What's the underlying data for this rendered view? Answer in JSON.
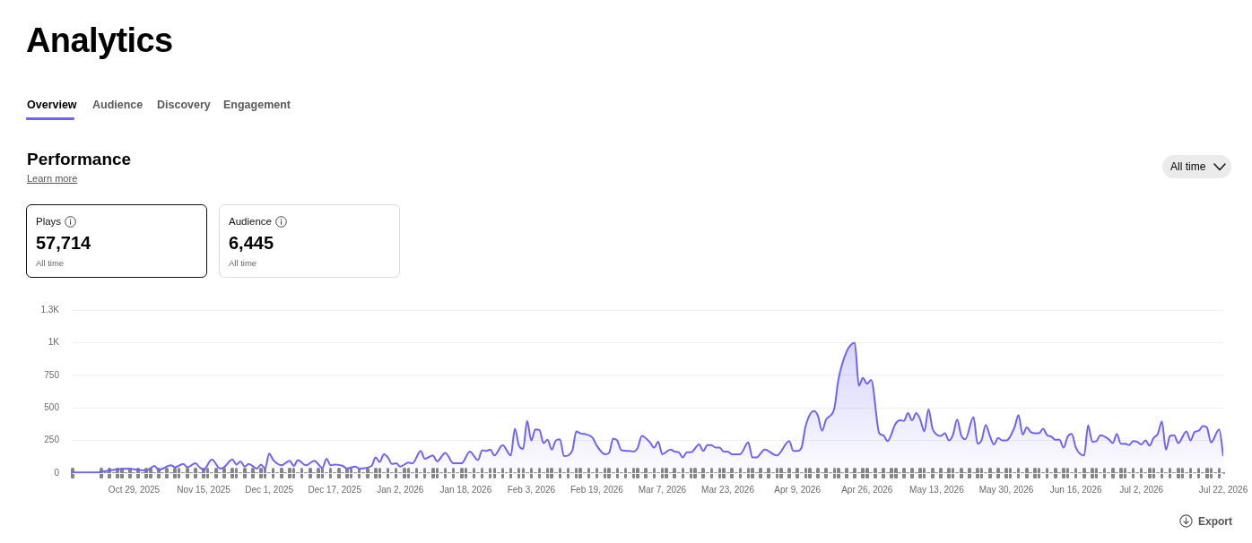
{
  "chart_data": {
    "type": "area",
    "title": "Performance",
    "subtitle": "Learn more",
    "annotations": [
      "Analytics",
      "Overview",
      "Audience",
      "Discovery",
      "Engagement",
      "All time",
      "Plays",
      "57,714",
      "All time",
      "Audience",
      "6,445",
      "All time",
      "Export"
    ],
    "x": [
      "2025-10-14",
      "2025-10-20",
      "2025-10-22",
      "2025-10-27",
      "2025-11-01",
      "2025-11-03",
      "2025-11-04",
      "2025-11-07",
      "2025-11-08",
      "2025-11-10",
      "2025-11-11",
      "2025-11-13",
      "2025-11-14",
      "2025-11-15",
      "2025-11-17",
      "2025-11-19",
      "2025-11-20",
      "2025-11-22",
      "2025-11-23",
      "2025-11-24",
      "2025-11-25",
      "2025-11-26",
      "2025-11-28",
      "2025-11-29",
      "2025-11-30",
      "2025-12-01",
      "2025-12-02",
      "2025-12-04",
      "2025-12-06",
      "2025-12-07",
      "2025-12-08",
      "2025-12-10",
      "2025-12-12",
      "2025-12-14",
      "2025-12-15",
      "2025-12-16",
      "2025-12-17",
      "2025-12-19",
      "2025-12-20",
      "2025-12-22",
      "2025-12-23",
      "2025-12-26",
      "2025-12-27",
      "2025-12-28",
      "2025-12-29",
      "2025-12-30",
      "2025-12-31",
      "2026-01-01",
      "2026-01-02",
      "2026-01-04",
      "2026-01-05",
      "2026-01-07",
      "2026-01-08",
      "2026-01-10",
      "2026-01-11",
      "2026-01-13",
      "2026-01-15",
      "2026-01-17",
      "2026-01-19",
      "2026-01-21",
      "2026-01-22",
      "2026-01-23",
      "2026-01-24",
      "2026-01-25",
      "2026-01-27",
      "2026-01-29",
      "2026-01-30",
      "2026-01-31",
      "2026-02-01",
      "2026-02-02",
      "2026-02-03",
      "2026-02-04",
      "2026-02-05",
      "2026-02-06",
      "2026-02-07",
      "2026-02-08",
      "2026-02-09",
      "2026-02-10",
      "2026-02-11",
      "2026-02-13",
      "2026-02-14",
      "2026-02-15",
      "2026-02-16",
      "2026-02-18",
      "2026-02-19",
      "2026-02-21",
      "2026-02-22",
      "2026-02-23",
      "2026-02-24",
      "2026-02-25",
      "2026-02-27",
      "2026-02-28",
      "2026-03-01",
      "2026-03-02",
      "2026-03-04",
      "2026-03-05",
      "2026-03-06",
      "2026-03-07",
      "2026-03-09",
      "2026-03-10",
      "2026-03-11",
      "2026-03-12",
      "2026-03-13",
      "2026-03-14",
      "2026-03-16",
      "2026-03-17",
      "2026-03-18",
      "2026-03-19",
      "2026-03-20",
      "2026-03-21",
      "2026-03-22",
      "2026-03-23",
      "2026-03-24",
      "2026-03-26",
      "2026-03-28",
      "2026-03-29",
      "2026-03-30",
      "2026-04-01",
      "2026-04-04",
      "2026-04-07",
      "2026-04-08",
      "2026-04-09",
      "2026-04-10",
      "2026-04-11",
      "2026-04-13",
      "2026-04-14",
      "2026-04-15",
      "2026-04-16",
      "2026-04-18",
      "2026-04-19",
      "2026-04-21",
      "2026-04-23",
      "2026-04-24",
      "2026-04-25",
      "2026-04-26",
      "2026-04-27",
      "2026-04-29",
      "2026-04-30",
      "2026-05-01",
      "2026-05-03",
      "2026-05-04",
      "2026-05-05",
      "2026-05-06",
      "2026-05-07",
      "2026-05-08",
      "2026-05-09",
      "2026-05-10",
      "2026-05-11",
      "2026-05-12",
      "2026-05-13",
      "2026-05-14",
      "2026-05-15",
      "2026-05-16",
      "2026-05-17",
      "2026-05-18",
      "2026-05-19",
      "2026-05-20",
      "2026-05-22",
      "2026-05-23",
      "2026-05-24",
      "2026-05-25",
      "2026-05-26",
      "2026-05-27",
      "2026-05-28",
      "2026-05-29",
      "2026-05-30",
      "2026-06-01",
      "2026-06-02",
      "2026-06-03",
      "2026-06-04",
      "2026-06-05",
      "2026-06-06",
      "2026-06-07",
      "2026-06-08",
      "2026-06-09",
      "2026-06-10",
      "2026-06-11",
      "2026-06-12",
      "2026-06-13",
      "2026-06-14",
      "2026-06-15",
      "2026-06-16",
      "2026-06-18",
      "2026-06-19",
      "2026-06-20",
      "2026-06-21",
      "2026-06-22",
      "2026-06-24",
      "2026-06-25",
      "2026-06-26",
      "2026-06-27",
      "2026-06-28",
      "2026-06-29",
      "2026-06-30",
      "2026-07-01",
      "2026-07-02",
      "2026-07-03",
      "2026-07-04",
      "2026-07-05",
      "2026-07-06",
      "2026-07-07",
      "2026-07-08",
      "2026-07-09",
      "2026-07-10",
      "2026-07-11",
      "2026-07-13",
      "2026-07-14",
      "2026-07-15",
      "2026-07-16",
      "2026-07-17",
      "2026-07-18",
      "2026-07-19",
      "2026-07-21",
      "2026-07-22"
    ],
    "values": [
      5,
      5,
      15,
      35,
      20,
      55,
      25,
      60,
      45,
      70,
      45,
      75,
      45,
      25,
      105,
      35,
      45,
      105,
      65,
      90,
      50,
      70,
      35,
      65,
      35,
      150,
      100,
      60,
      95,
      55,
      100,
      60,
      95,
      40,
      110,
      60,
      65,
      55,
      35,
      50,
      35,
      55,
      120,
      85,
      145,
      120,
      70,
      75,
      50,
      80,
      75,
      170,
      110,
      135,
      90,
      155,
      75,
      75,
      165,
      100,
      175,
      170,
      180,
      135,
      215,
      135,
      340,
      210,
      185,
      400,
      250,
      335,
      330,
      230,
      255,
      180,
      250,
      260,
      130,
      170,
      320,
      305,
      300,
      270,
      210,
      145,
      155,
      265,
      250,
      175,
      170,
      165,
      195,
      285,
      235,
      195,
      240,
      145,
      180,
      165,
      160,
      120,
      160,
      160,
      220,
      170,
      215,
      215,
      195,
      195,
      165,
      165,
      145,
      145,
      235,
      120,
      120,
      180,
      135,
      245,
      170,
      170,
      195,
      360,
      475,
      440,
      325,
      410,
      495,
      715,
      930,
      1000,
      670,
      730,
      685,
      715,
      305,
      290,
      245,
      380,
      405,
      400,
      460,
      405,
      460,
      410,
      320,
      490,
      340,
      295,
      285,
      305,
      250,
      295,
      410,
      290,
      260,
      430,
      225,
      255,
      370,
      285,
      220,
      270,
      250,
      250,
      350,
      445,
      295,
      350,
      315,
      305,
      305,
      340,
      290,
      280,
      255,
      255,
      195,
      280,
      300,
      195,
      135,
      365,
      240,
      245,
      290,
      260,
      230,
      300,
      225,
      225,
      215,
      245,
      240,
      220,
      250,
      210,
      270,
      300,
      395,
      180,
      285,
      290,
      230,
      320,
      250,
      315,
      325,
      360,
      350,
      235,
      335,
      130
    ],
    "color": "#6f63f6",
    "xlim": [
      "2025-10-14",
      "2026-07-22"
    ],
    "xticks": [
      {
        "value": "2025-10-29",
        "label": "Oct 29, 2025"
      },
      {
        "value": "2025-11-15",
        "label": "Nov 15, 2025"
      },
      {
        "value": "2025-12-01",
        "label": "Dec 1, 2025"
      },
      {
        "value": "2025-12-17",
        "label": "Dec 17, 2025"
      },
      {
        "value": "2026-01-02",
        "label": "Jan 2, 2026"
      },
      {
        "value": "2026-01-18",
        "label": "Jan 18, 2026"
      },
      {
        "value": "2026-02-03",
        "label": "Feb 3, 2026"
      },
      {
        "value": "2026-02-19",
        "label": "Feb 19, 2026"
      },
      {
        "value": "2026-03-07",
        "label": "Mar 7, 2026"
      },
      {
        "value": "2026-03-23",
        "label": "Mar 23, 2026"
      },
      {
        "value": "2026-04-09",
        "label": "Apr 9, 2026"
      },
      {
        "value": "2026-04-26",
        "label": "Apr 26, 2026"
      },
      {
        "value": "2026-05-13",
        "label": "May 13, 2026"
      },
      {
        "value": "2026-05-30",
        "label": "May 30, 2026"
      },
      {
        "value": "2026-06-16",
        "label": "Jun 16, 2026"
      },
      {
        "value": "2026-07-02",
        "label": "Jul 2, 2026"
      },
      {
        "value": "2026-07-22",
        "label": "Jul 22, 2026"
      }
    ],
    "ylim": [
      0,
      1250
    ],
    "yticks": [
      0,
      250,
      500,
      750,
      {
        "value": 1000,
        "label": "1K"
      },
      {
        "value": 1250,
        "label": "1.3K"
      }
    ],
    "grid": "y"
  }
}
